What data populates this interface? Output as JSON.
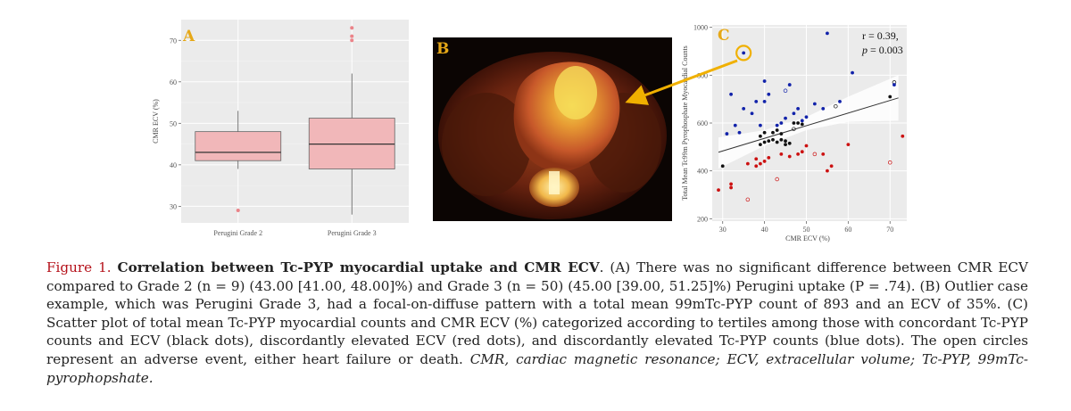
{
  "panels": {
    "a": {
      "letter": "A"
    },
    "b": {
      "letter": "B"
    },
    "c": {
      "letter": "C",
      "stat_r": "r = 0.39,",
      "stat_p_prefix": "p",
      "stat_p_value": " = 0.003"
    }
  },
  "chart_data": [
    {
      "id": "A",
      "type": "box",
      "title": "",
      "xlabel": "",
      "ylabel": "CMR ECV (%)",
      "ylim": [
        26,
        75
      ],
      "yticks": [
        30,
        40,
        50,
        60,
        70
      ],
      "categories": [
        "Perugini Grade 2",
        "Perugini Grade 3"
      ],
      "boxes": [
        {
          "category": "Perugini Grade 2",
          "q1": 41,
          "median": 43,
          "q3": 48,
          "whisker_low": 39,
          "whisker_high": 53,
          "outliers": [
            29
          ]
        },
        {
          "category": "Perugini Grade 3",
          "q1": 39,
          "median": 45,
          "q3": 51.25,
          "whisker_low": 28,
          "whisker_high": 62,
          "outliers": [
            70,
            71,
            73
          ]
        }
      ],
      "box_color": "#f1b7b9",
      "outlier_color": "#e8666e"
    },
    {
      "id": "C",
      "type": "scatter",
      "title": "",
      "xlabel": "CMR ECV (%)",
      "ylabel": "Total Mean Tc99m Pyrophosphate Myocardial Counts",
      "xlim": [
        27.5,
        74
      ],
      "ylim": [
        190,
        1010
      ],
      "xticks": [
        30,
        40,
        50,
        60,
        70
      ],
      "yticks": [
        200,
        400,
        600,
        800,
        1000
      ],
      "fit_line": {
        "x": [
          29,
          72
        ],
        "y": [
          478,
          705
        ]
      },
      "confidence_band": {
        "x": [
          29,
          40,
          50,
          60,
          72
        ],
        "upper": [
          540,
          570,
          625,
          710,
          800
        ],
        "lower": [
          410,
          505,
          570,
          605,
          610
        ]
      },
      "series": [
        {
          "name": "concordant",
          "color": "#111111",
          "points": [
            [
              30,
              420
            ],
            [
              39,
              545
            ],
            [
              39,
              510
            ],
            [
              40,
              520
            ],
            [
              40,
              560
            ],
            [
              41,
              525
            ],
            [
              42,
              560
            ],
            [
              42,
              530
            ],
            [
              43,
              570
            ],
            [
              43,
              520
            ],
            [
              44,
              555
            ],
            [
              44,
              530
            ],
            [
              45,
              510
            ],
            [
              45,
              525
            ],
            [
              46,
              515
            ],
            [
              47,
              600
            ],
            [
              48,
              600
            ],
            [
              49,
              595
            ],
            [
              70,
              710
            ]
          ],
          "open": [
            [
              47,
              575
            ],
            [
              57,
              670
            ],
            [
              71,
              770
            ]
          ]
        },
        {
          "name": "elevated ECV",
          "color": "#cc1111",
          "points": [
            [
              29,
              320
            ],
            [
              32,
              345
            ],
            [
              32,
              330
            ],
            [
              36,
              430
            ],
            [
              38,
              450
            ],
            [
              38,
              420
            ],
            [
              39,
              430
            ],
            [
              40,
              440
            ],
            [
              41,
              455
            ],
            [
              44,
              470
            ],
            [
              46,
              460
            ],
            [
              48,
              470
            ],
            [
              49,
              480
            ],
            [
              50,
              505
            ],
            [
              54,
              470
            ],
            [
              55,
              400
            ],
            [
              56,
              420
            ],
            [
              60,
              510
            ],
            [
              73,
              545
            ]
          ],
          "open": [
            [
              36,
              280
            ],
            [
              43,
              365
            ],
            [
              52,
              470
            ],
            [
              70,
              435
            ]
          ]
        },
        {
          "name": "elevated Tc-PYP",
          "color": "#1122aa",
          "points": [
            [
              31,
              555
            ],
            [
              32,
              720
            ],
            [
              33,
              590
            ],
            [
              34,
              560
            ],
            [
              35,
              660
            ],
            [
              37,
              640
            ],
            [
              38,
              690
            ],
            [
              39,
              590
            ],
            [
              40,
              775
            ],
            [
              40,
              690
            ],
            [
              41,
              720
            ],
            [
              43,
              590
            ],
            [
              44,
              600
            ],
            [
              45,
              620
            ],
            [
              46,
              760
            ],
            [
              47,
              640
            ],
            [
              48,
              660
            ],
            [
              49,
              610
            ],
            [
              50,
              625
            ],
            [
              52,
              680
            ],
            [
              54,
              660
            ],
            [
              55,
              975
            ],
            [
              58,
              690
            ],
            [
              61,
              810
            ],
            [
              71,
              760
            ],
            [
              35,
              893
            ]
          ],
          "open": [
            [
              45,
              735
            ]
          ]
        }
      ],
      "highlight_point": [
        35,
        893
      ]
    }
  ],
  "caption": {
    "label": "Figure 1.",
    "title": "Correlation between Tc-PYP myocardial uptake and CMR ECV",
    "body": ". (A) There was no significant difference between CMR ECV compared to Grade 2 (n = 9) (43.00 [41.00, 48.00]%) and Grade 3 (n = 50) (45.00 [39.00, 51.25]%) Perugini uptake (P = .74). (B) Outlier case example, which was Perugini Grade 3, had a focal-on-diffuse pattern with a total mean 99mTc-PYP count of 893 and an ECV of 35%. (C) Scatter plot of total mean Tc-PYP myocardial counts and CMR ECV (%) categorized according to tertiles among those with concordant Tc-PYP counts and ECV (black dots), discordantly elevated ECV (red dots), and discordantly elevated Tc-PYP counts (blue dots). The open circles represent an adverse event, either heart failure or death. ",
    "abbreviations": "CMR, cardiac magnetic resonance; ECV, extracellular volume; Tc-PYP, 99mTc-pyrophopshate."
  }
}
